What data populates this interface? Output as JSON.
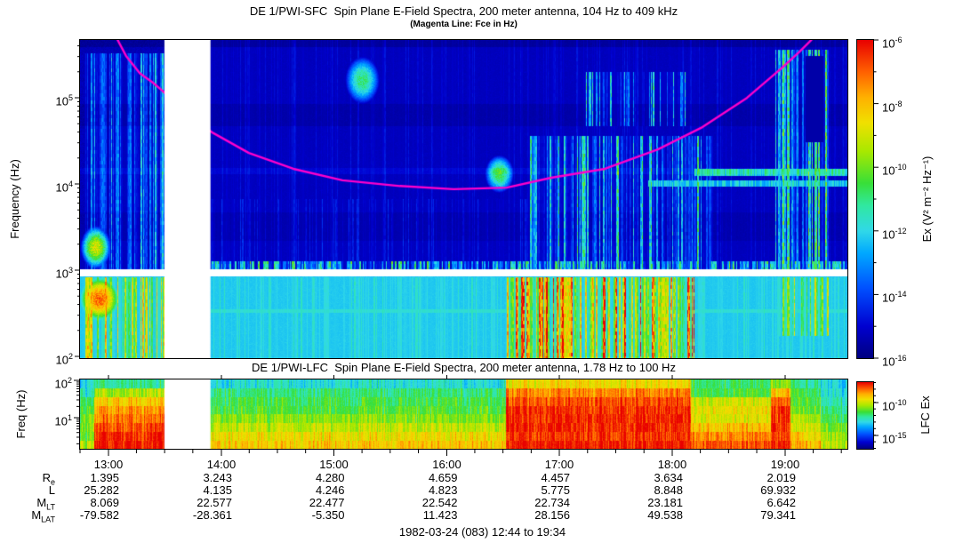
{
  "chart_data": {
    "type": "heatmap",
    "subtitle": "(Magenta Line: Fce in Hz)",
    "date_label": "1982-03-24 (083) 12:44 to 19:34",
    "x": {
      "start": "12:44",
      "end": "19:34",
      "tick_labels": [
        "13:00",
        "14:00",
        "15:00",
        "16:00",
        "17:00",
        "18:00",
        "19:00"
      ]
    },
    "panels": [
      {
        "id": "sfc",
        "title": "DE 1/PWI-SFC  Spin Plane E-Field Spectra, 200 meter antenna, 104 Hz to 409 kHz",
        "ylabel": "Frequency (Hz)",
        "yscale": "log",
        "yrange_hz": [
          104,
          409000
        ],
        "y_tick_exponents": [
          5,
          4,
          3,
          2
        ],
        "colorbar": {
          "label": "Ex (V² m⁻² Hz⁻¹)",
          "tick_exponents": [
            -6,
            -8,
            -10,
            -12,
            -14,
            -16
          ],
          "range": [
            1e-16,
            1e-06
          ]
        }
      },
      {
        "id": "lfc",
        "title": "DE 1/PWI-LFC  Spin Plane E-Field Spectra, 200 meter antenna, 1.78 Hz to 100 Hz",
        "ylabel": "Freq (Hz)",
        "yscale": "log",
        "yrange_hz": [
          1.78,
          100
        ],
        "y_tick_exponents": [
          2,
          1
        ],
        "colorbar": {
          "label": "LFC Ex",
          "tick_exponents": [
            -10,
            -15
          ]
        }
      }
    ],
    "overlay_line": {
      "name": "Fce",
      "color": "#FF00CC",
      "points_frac": [
        [
          0.049,
          0.0
        ],
        [
          0.06,
          0.05
        ],
        [
          0.078,
          0.105
        ],
        [
          0.095,
          0.134
        ],
        [
          0.107,
          0.159
        ],
        [
          0.125,
          0.2
        ],
        [
          0.145,
          0.245
        ],
        [
          0.174,
          0.293
        ],
        [
          0.22,
          0.355
        ],
        [
          0.278,
          0.405
        ],
        [
          0.342,
          0.441
        ],
        [
          0.417,
          0.459
        ],
        [
          0.487,
          0.469
        ],
        [
          0.556,
          0.464
        ],
        [
          0.614,
          0.433
        ],
        [
          0.684,
          0.405
        ],
        [
          0.753,
          0.344
        ],
        [
          0.811,
          0.274
        ],
        [
          0.869,
          0.182
        ],
        [
          0.915,
          0.087
        ],
        [
          0.938,
          0.036
        ],
        [
          0.953,
          0.0
        ]
      ]
    },
    "data_gap_frac": [
      0.11,
      0.17
    ],
    "sfc_white_band_frac": [
      0.7207,
      0.743
    ],
    "colormap_stops": [
      [
        0.0,
        "#000080"
      ],
      [
        0.1,
        "#0000D0"
      ],
      [
        0.22,
        "#0050FF"
      ],
      [
        0.33,
        "#00A8FF"
      ],
      [
        0.4,
        "#30D8E8"
      ],
      [
        0.48,
        "#30E8A0"
      ],
      [
        0.55,
        "#38DF38"
      ],
      [
        0.65,
        "#A8E800"
      ],
      [
        0.74,
        "#F0E000"
      ],
      [
        0.82,
        "#FFB000"
      ],
      [
        0.9,
        "#FF6000"
      ],
      [
        1.0,
        "#E80000"
      ]
    ],
    "sfc_bands": [
      {
        "y": [
          0.0,
          0.02
        ],
        "delta": -0.04
      },
      {
        "y": [
          0.2,
          0.27
        ],
        "delta": -0.025
      },
      {
        "y": [
          0.54,
          0.63
        ],
        "delta": -0.02
      },
      {
        "y": [
          0.4,
          0.42
        ],
        "delta": 0.03
      }
    ],
    "sfc_features": [
      {
        "style": "stripes",
        "x": [
          0.005,
          0.112
        ],
        "y": [
          0.04,
          0.72
        ],
        "amp": 0.52,
        "density": 0.75
      },
      {
        "style": "blob",
        "x": [
          0.0,
          0.04
        ],
        "y": [
          0.58,
          0.72
        ],
        "amp": 0.72
      },
      {
        "style": "stripes",
        "x": [
          0.0,
          0.112
        ],
        "y": [
          0.745,
          1.0
        ],
        "amp": 0.55,
        "density": 0.85
      },
      {
        "style": "blob",
        "x": [
          0.0,
          0.05
        ],
        "y": [
          0.745,
          0.88
        ],
        "amp": 0.6
      },
      {
        "style": "blob",
        "x": [
          0.345,
          0.39
        ],
        "y": [
          0.05,
          0.2
        ],
        "amp": 0.5
      },
      {
        "style": "blob",
        "x": [
          0.527,
          0.565
        ],
        "y": [
          0.36,
          0.48
        ],
        "amp": 0.55
      },
      {
        "style": "stripes",
        "x": [
          0.585,
          0.825
        ],
        "y": [
          0.3,
          0.72
        ],
        "amp": 0.55,
        "density": 0.65
      },
      {
        "style": "stripes",
        "x": [
          0.655,
          0.79
        ],
        "y": [
          0.1,
          0.27
        ],
        "amp": 0.5,
        "density": 0.5
      },
      {
        "style": "stripes",
        "x": [
          0.556,
          0.8
        ],
        "y": [
          0.745,
          1.0
        ],
        "amp": 0.85,
        "density": 0.9
      },
      {
        "style": "row",
        "x": [
          0.8,
          1.0
        ],
        "y": [
          0.405,
          0.425
        ],
        "amp": 0.45
      },
      {
        "style": "row",
        "x": [
          0.74,
          1.0
        ],
        "y": [
          0.44,
          0.46
        ],
        "amp": 0.4
      },
      {
        "style": "stripes",
        "x": [
          0.905,
          0.975
        ],
        "y": [
          0.03,
          0.72
        ],
        "amp": 0.62,
        "density": 0.8
      },
      {
        "style": "stripes",
        "x": [
          0.91,
          0.975
        ],
        "y": [
          0.745,
          0.93
        ],
        "amp": 0.5,
        "density": 0.8
      },
      {
        "style": "stripes",
        "x": [
          0.17,
          0.585
        ],
        "y": [
          0.5,
          0.72
        ],
        "amp": 0.14,
        "density": 0.3
      },
      {
        "style": "stripes",
        "x": [
          0.17,
          1.0
        ],
        "y": [
          0.695,
          0.722
        ],
        "amp": 0.6,
        "density": 0.9
      },
      {
        "style": "stripes",
        "x": [
          0.112,
          1.0
        ],
        "y": [
          0.0,
          0.72
        ],
        "amp": 0.08,
        "density": 0.4
      },
      {
        "style": "stripes",
        "x": [
          0.17,
          1.0
        ],
        "y": [
          0.745,
          1.0
        ],
        "amp": 0.1,
        "density": 0.5
      },
      {
        "style": "row",
        "x": [
          0.17,
          1.0
        ],
        "y": [
          0.845,
          0.855
        ],
        "amp": 0.07
      },
      {
        "style": "dark",
        "x": [
          0.945,
          0.968
        ],
        "y": [
          0.05,
          0.32
        ],
        "amp": 0.3
      }
    ],
    "lfc_row_bands": 8,
    "lfc_segments": [
      {
        "x": [
          0.0,
          0.018
        ],
        "rows": [
          0.4,
          0.45,
          0.5,
          0.55,
          0.6,
          0.62,
          0.58,
          0.66
        ]
      },
      {
        "x": [
          0.018,
          0.112
        ],
        "rows": [
          0.48,
          0.66,
          0.78,
          0.84,
          0.88,
          0.92,
          0.97,
          0.98
        ]
      },
      {
        "x": [
          0.17,
          0.555
        ],
        "rows": [
          0.42,
          0.5,
          0.54,
          0.56,
          0.62,
          0.68,
          0.74,
          0.78
        ]
      },
      {
        "x": [
          0.555,
          0.795
        ],
        "rows": [
          0.74,
          0.86,
          0.92,
          0.95,
          0.96,
          0.96,
          0.94,
          0.97
        ]
      },
      {
        "x": [
          0.795,
          0.9
        ],
        "rows": [
          0.52,
          0.56,
          0.7,
          0.74,
          0.72,
          0.8,
          0.86,
          0.92
        ]
      },
      {
        "x": [
          0.9,
          0.925
        ],
        "rows": [
          0.62,
          0.8,
          0.9,
          0.94,
          0.95,
          0.95,
          0.92,
          0.96
        ]
      },
      {
        "x": [
          0.925,
          0.965
        ],
        "rows": [
          0.48,
          0.54,
          0.56,
          0.6,
          0.66,
          0.7,
          0.76,
          0.8
        ]
      },
      {
        "x": [
          0.965,
          1.01
        ],
        "rows": [
          0.4,
          0.42,
          0.46,
          0.5,
          0.55,
          0.6,
          0.64,
          0.68
        ]
      }
    ],
    "ephemeris": {
      "row_labels": [
        {
          "main": "R",
          "sub": "e"
        },
        {
          "main": "L",
          "sub": ""
        },
        {
          "main": "M",
          "sub": "LT"
        },
        {
          "main": "M",
          "sub": "LAT"
        }
      ],
      "rows": [
        [
          "1.395",
          "3.243",
          "4.280",
          "4.659",
          "4.457",
          "3.634",
          "2.019"
        ],
        [
          "25.282",
          "4.135",
          "4.246",
          "4.823",
          "5.775",
          "8.848",
          "69.932"
        ],
        [
          "8.069",
          "22.577",
          "22.477",
          "22.542",
          "22.734",
          "23.181",
          "6.642"
        ],
        [
          "-79.582",
          "-28.361",
          "-5.350",
          "11.423",
          "28.156",
          "49.538",
          "79.341"
        ]
      ]
    }
  }
}
